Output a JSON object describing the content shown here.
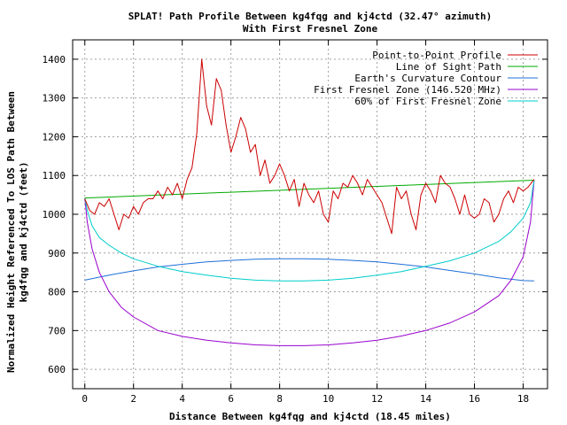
{
  "chart_data": {
    "type": "line",
    "title_line1": "SPLAT! Path Profile Between kg4fqg and kj4ctd (32.47° azimuth)",
    "title_line2": "With First Fresnel Zone",
    "xlabel": "Distance Between kg4fqg and kj4ctd (18.45 miles)",
    "ylabel_line1": "Normalized Height Referenced To LOS Path Between",
    "ylabel_line2": "kg4fqg and kj4ctd (feet)",
    "xlim": [
      -0.5,
      19.0
    ],
    "ylim": [
      550,
      1450
    ],
    "xticks": [
      0,
      2,
      4,
      6,
      8,
      10,
      12,
      14,
      16,
      18
    ],
    "yticks": [
      600,
      700,
      800,
      900,
      1000,
      1100,
      1200,
      1300,
      1400
    ],
    "grid": true,
    "legend_position": "top-right",
    "series": [
      {
        "name": "Point-to-Point Profile",
        "color": "#cc0000",
        "x": [
          0,
          0.2,
          0.4,
          0.6,
          0.8,
          1.0,
          1.2,
          1.4,
          1.6,
          1.8,
          2.0,
          2.2,
          2.4,
          2.6,
          2.8,
          3.0,
          3.2,
          3.4,
          3.6,
          3.8,
          4.0,
          4.2,
          4.4,
          4.6,
          4.8,
          5.0,
          5.2,
          5.4,
          5.6,
          5.8,
          6.0,
          6.2,
          6.4,
          6.6,
          6.8,
          7.0,
          7.2,
          7.4,
          7.6,
          7.8,
          8.0,
          8.2,
          8.4,
          8.6,
          8.8,
          9.0,
          9.2,
          9.4,
          9.6,
          9.8,
          10.0,
          10.2,
          10.4,
          10.6,
          10.8,
          11.0,
          11.2,
          11.4,
          11.6,
          11.8,
          12.0,
          12.2,
          12.4,
          12.6,
          12.8,
          13.0,
          13.2,
          13.4,
          13.6,
          13.8,
          14.0,
          14.2,
          14.4,
          14.6,
          14.8,
          15.0,
          15.2,
          15.4,
          15.6,
          15.8,
          16.0,
          16.2,
          16.4,
          16.6,
          16.8,
          17.0,
          17.2,
          17.4,
          17.6,
          17.8,
          18.0,
          18.2,
          18.45
        ],
        "values": [
          1040,
          1010,
          1000,
          1030,
          1020,
          1040,
          1000,
          960,
          1000,
          990,
          1020,
          1000,
          1030,
          1040,
          1040,
          1060,
          1040,
          1070,
          1050,
          1080,
          1040,
          1090,
          1120,
          1210,
          1400,
          1280,
          1230,
          1350,
          1320,
          1230,
          1160,
          1200,
          1250,
          1220,
          1160,
          1180,
          1100,
          1140,
          1080,
          1100,
          1130,
          1100,
          1060,
          1090,
          1020,
          1080,
          1050,
          1030,
          1060,
          1000,
          980,
          1060,
          1040,
          1080,
          1070,
          1100,
          1080,
          1050,
          1090,
          1070,
          1050,
          1030,
          990,
          950,
          1070,
          1040,
          1060,
          1000,
          960,
          1050,
          1080,
          1060,
          1030,
          1100,
          1080,
          1070,
          1040,
          1000,
          1050,
          1000,
          990,
          1000,
          1040,
          1030,
          980,
          1000,
          1040,
          1060,
          1030,
          1070,
          1060,
          1070,
          1090
        ],
        "type": "line"
      },
      {
        "name": "Line of Sight Path",
        "color": "#00aa00",
        "x": [
          0,
          18.45
        ],
        "values": [
          1042,
          1088
        ],
        "type": "line"
      },
      {
        "name": "Earth's Curvature Contour",
        "color": "#1f6fd6",
        "x": [
          0,
          1,
          2,
          3,
          4,
          5,
          6,
          7,
          8,
          9,
          10,
          11,
          12,
          13,
          14,
          15,
          16,
          17,
          18,
          18.45
        ],
        "values": [
          830,
          843,
          854,
          864,
          871,
          877,
          881,
          884,
          885,
          885,
          884,
          881,
          877,
          871,
          864,
          855,
          846,
          836,
          829,
          828
        ],
        "type": "line"
      },
      {
        "name": "First Fresnel Zone (146.520 MHz)",
        "color": "#9900cc",
        "x": [
          0,
          0.1,
          0.3,
          0.6,
          1,
          1.5,
          2,
          3,
          4,
          5,
          6,
          7,
          8,
          9,
          10,
          11,
          12,
          13,
          14,
          15,
          16,
          17,
          17.5,
          18,
          18.3,
          18.45
        ],
        "values": [
          1042,
          980,
          910,
          850,
          800,
          760,
          735,
          700,
          685,
          675,
          668,
          663,
          661,
          661,
          663,
          668,
          675,
          686,
          700,
          720,
          748,
          790,
          830,
          890,
          980,
          1088
        ],
        "type": "line"
      },
      {
        "name": "60% of First Fresnel Zone",
        "color": "#00cccc",
        "x": [
          0,
          0.1,
          0.3,
          0.6,
          1,
          1.5,
          2,
          3,
          4,
          5,
          6,
          7,
          8,
          9,
          10,
          11,
          12,
          13,
          14,
          15,
          16,
          17,
          17.5,
          18,
          18.3,
          18.45
        ],
        "values": [
          1042,
          1010,
          970,
          940,
          920,
          900,
          885,
          866,
          852,
          843,
          835,
          830,
          828,
          828,
          830,
          835,
          843,
          852,
          866,
          880,
          900,
          930,
          955,
          990,
          1030,
          1088
        ],
        "type": "line"
      }
    ]
  }
}
